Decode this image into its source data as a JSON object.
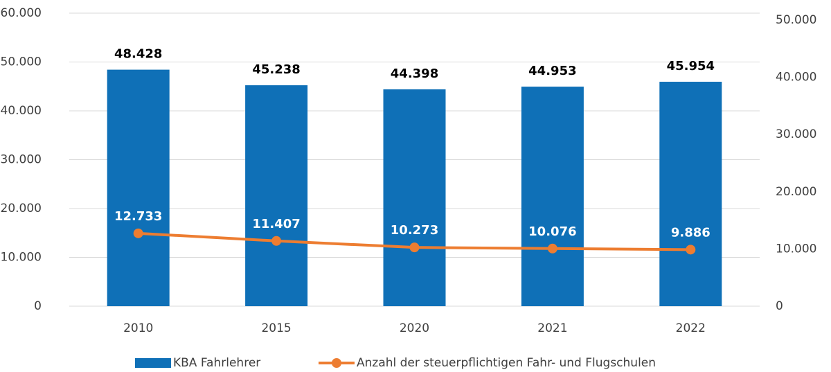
{
  "chart_data": {
    "type": "bar",
    "categories": [
      "2010",
      "2015",
      "2020",
      "2021",
      "2022"
    ],
    "series": [
      {
        "name": "KBA Fahrlehrer",
        "type": "bar",
        "color": "#0f70b7",
        "values": [
          48428,
          45238,
          44398,
          44953,
          45954
        ],
        "value_labels": [
          "48.428",
          "45.238",
          "44.398",
          "44.953",
          "45.954"
        ]
      },
      {
        "name": "Anzahl der steuerpflichtigen Fahr- und Flugschulen",
        "type": "line",
        "color": "#ed7d31",
        "axis": "y2",
        "values": [
          12733,
          11407,
          10273,
          10076,
          9886
        ],
        "value_labels": [
          "12.733",
          "11.407",
          "10.273",
          "10.076",
          "9.886"
        ]
      }
    ],
    "ylim": [
      0,
      60000
    ],
    "yticks": [
      0,
      {
        "value": 10000,
        "label": "10.000"
      },
      {
        "value": 20000,
        "label": "20.000"
      },
      {
        "value": 30000,
        "label": "30.000"
      },
      {
        "value": 40000,
        "label": "40.000"
      },
      {
        "value": 50000,
        "label": "50.000"
      },
      {
        "value": 60000,
        "label": "60.000"
      }
    ],
    "y2lim": [
      0,
      50000
    ],
    "y2ticks": [
      0,
      {
        "value": 10000,
        "label": "10.000"
      },
      {
        "value": 20000,
        "label": "20.000"
      },
      {
        "value": 30000,
        "label": "30.000"
      },
      {
        "value": 40000,
        "label": "40.000"
      },
      {
        "value": 50000,
        "label": "50.000"
      }
    ],
    "grid": true,
    "legend": "bottom"
  }
}
